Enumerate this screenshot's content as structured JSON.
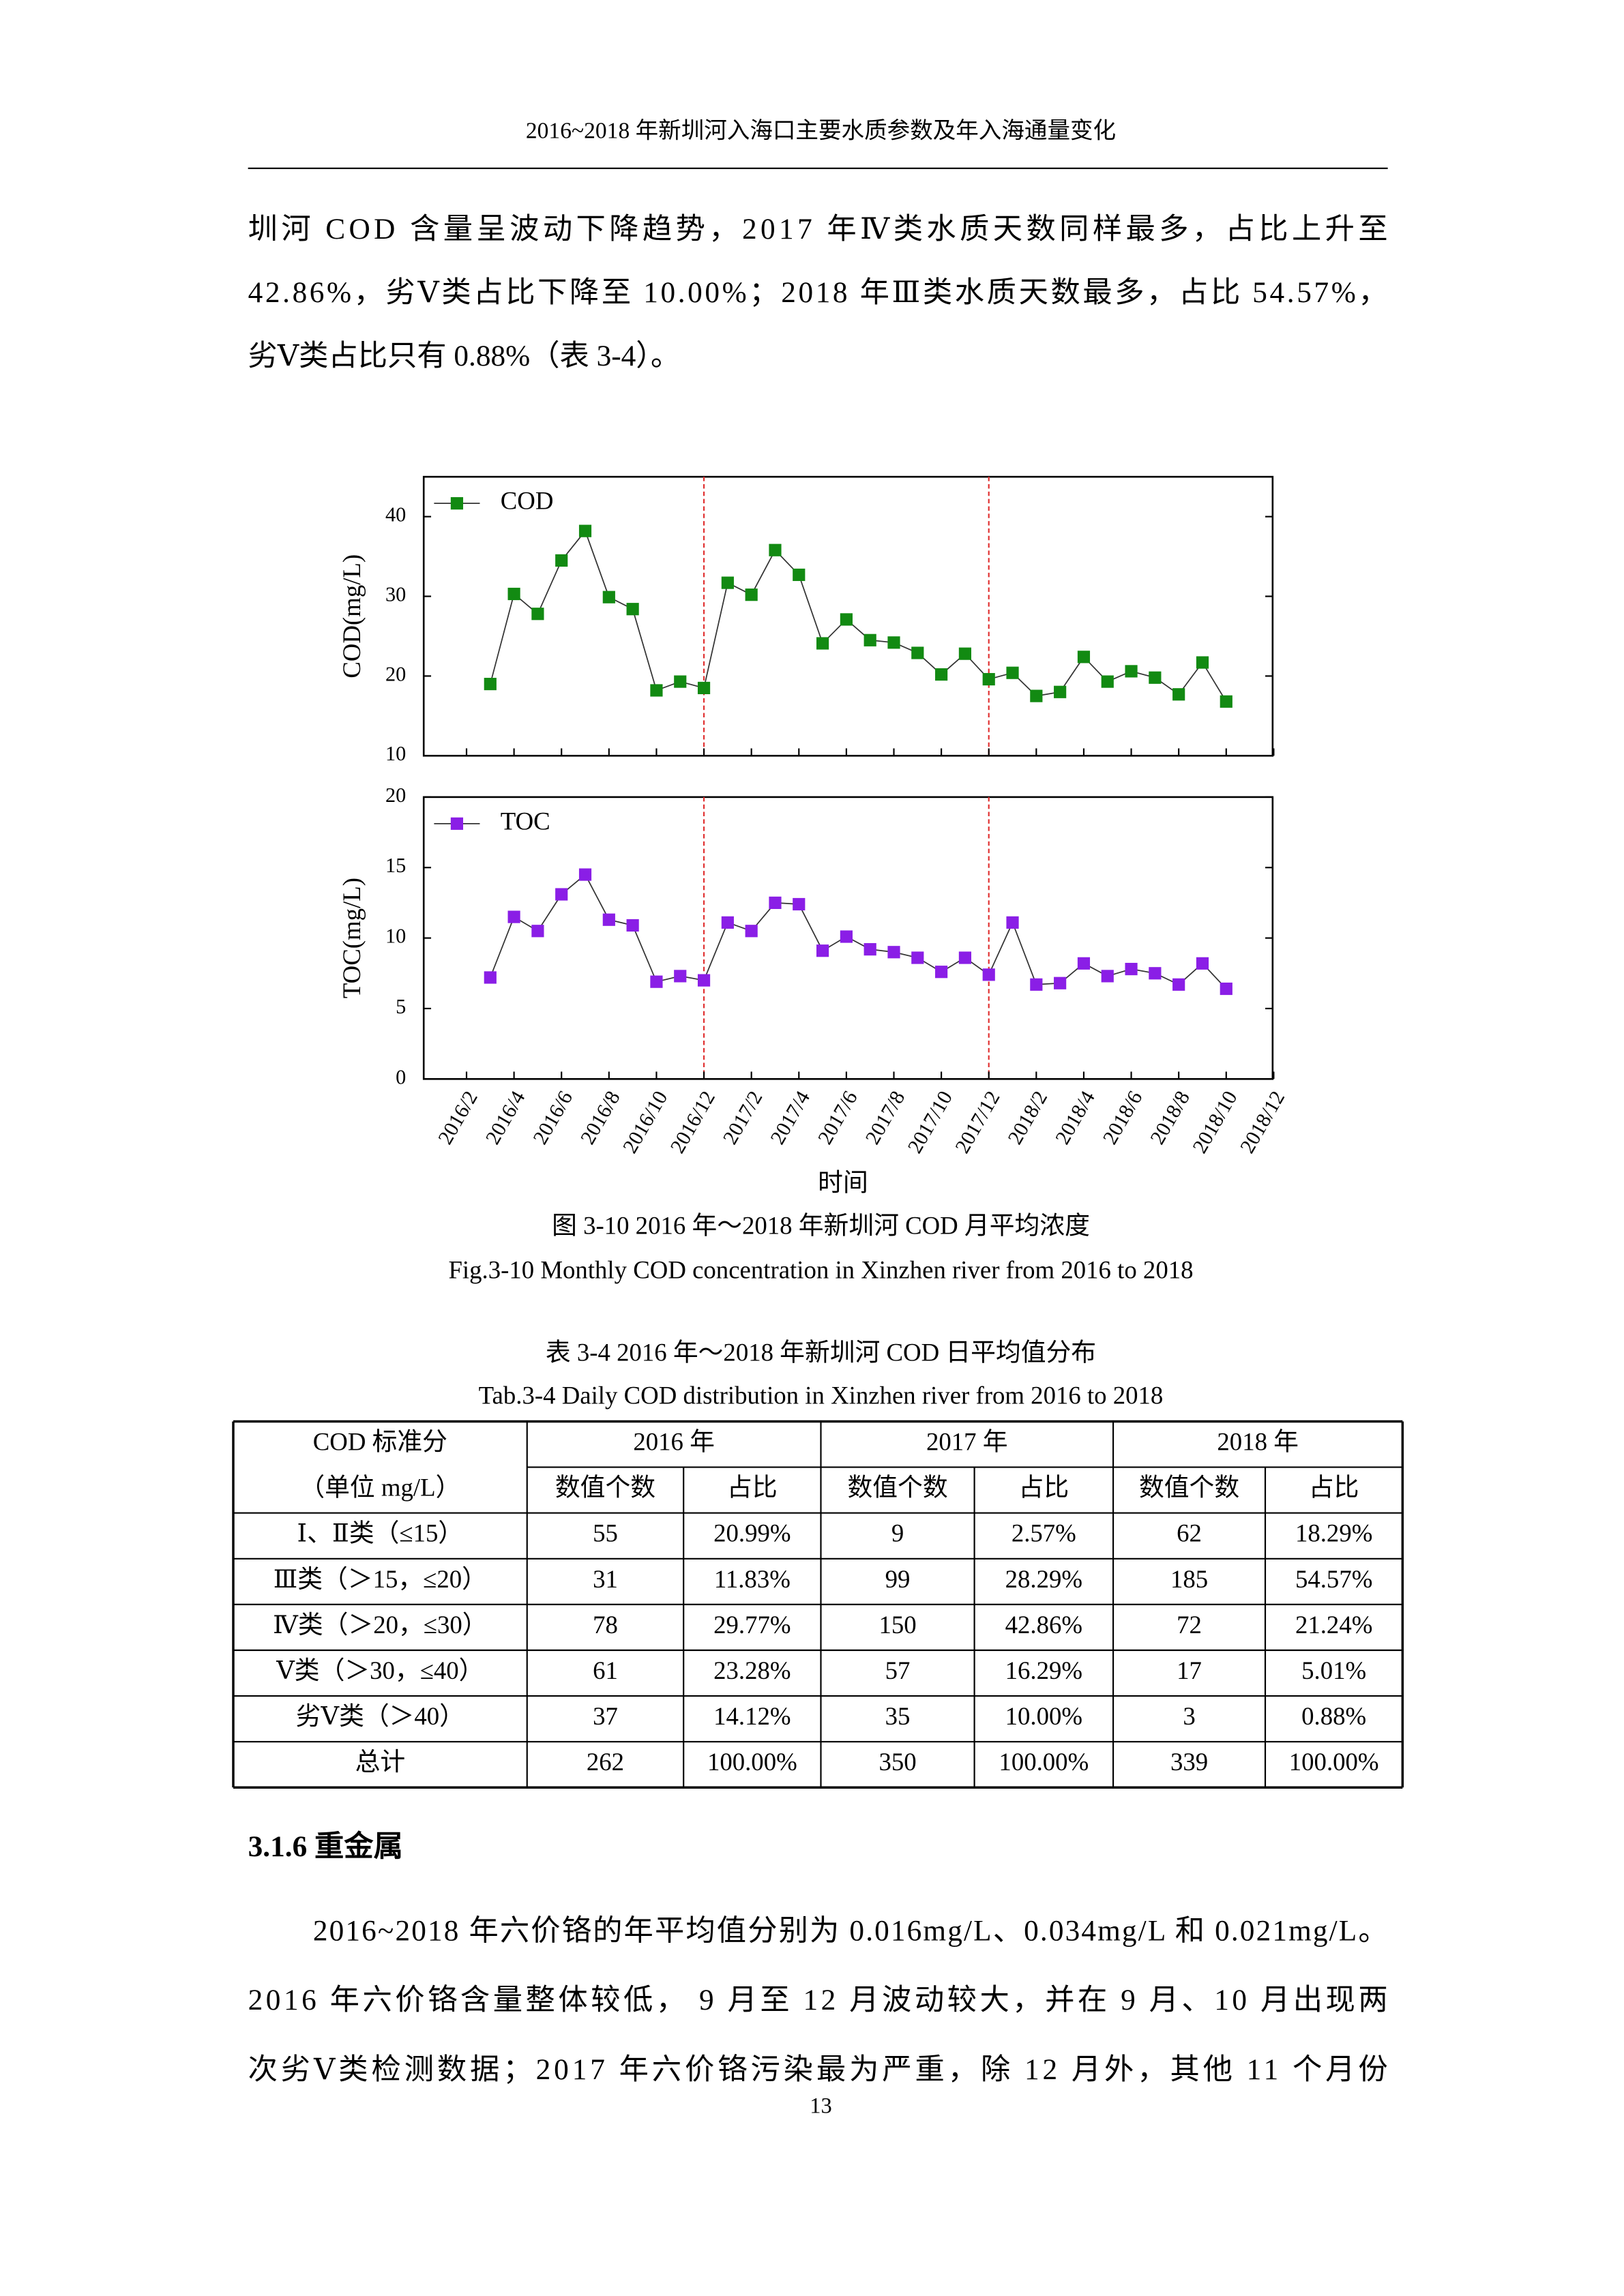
{
  "header": "2016~2018 年新圳河入海口主要水质参数及年入海通量变化",
  "paragraph_1": [
    "圳河 COD 含量呈波动下降趋势，2017 年Ⅳ类水质天数同样最多，占比上升至",
    "42.86%，劣Ⅴ类占比下降至 10.00%；2018 年Ⅲ类水质天数最多，占比 54.57%，",
    "劣Ⅴ类占比只有 0.88%（表 3-4）。"
  ],
  "chart_data": {
    "type": "line",
    "x_label": "时间",
    "categories": [
      "2016/2",
      null,
      "2016/4",
      null,
      "2016/6",
      null,
      "2016/8",
      null,
      "2016/10",
      null,
      "2016/12",
      null,
      "2017/2",
      null,
      "2017/4",
      null,
      "2017/6",
      null,
      "2017/8",
      null,
      "2017/10",
      null,
      "2017/12",
      null,
      "2018/2",
      null,
      "2018/4",
      null,
      "2018/6",
      null,
      "2018/8",
      null,
      "2018/10",
      null,
      "2018/12"
    ],
    "reference_lines": [
      "2016/12",
      "2017/12"
    ],
    "reference_line_color": "#e03030",
    "legend": "upper left",
    "panels": [
      {
        "y_label": "COD(mg/L)",
        "ylim": [
          10,
          45
        ],
        "yticks": [
          10,
          20,
          30,
          40
        ],
        "series": [
          {
            "name": "COD",
            "color": "#128a12",
            "values": [
              null,
              19.0,
              30.3,
              27.8,
              34.5,
              38.2,
              29.9,
              28.4,
              18.2,
              19.3,
              18.5,
              31.7,
              30.2,
              35.8,
              32.7,
              24.1,
              27.1,
              24.5,
              24.2,
              22.9,
              20.2,
              22.8,
              19.6,
              20.4,
              17.5,
              18.0,
              22.4,
              19.3,
              20.6,
              19.8,
              17.7,
              21.7,
              16.8,
              null,
              null
            ]
          }
        ]
      },
      {
        "y_label": "TOC(mg/L)",
        "ylim": [
          0,
          20
        ],
        "yticks": [
          0,
          5,
          10,
          15,
          20
        ],
        "series": [
          {
            "name": "TOC",
            "color": "#8a1ee6",
            "values": [
              null,
              7.2,
              11.5,
              10.5,
              13.1,
              14.5,
              11.3,
              10.9,
              6.9,
              7.3,
              7.0,
              11.1,
              10.5,
              12.5,
              12.4,
              9.1,
              10.1,
              9.2,
              9.0,
              8.6,
              7.6,
              8.6,
              7.4,
              11.1,
              6.7,
              6.8,
              8.2,
              7.3,
              7.8,
              7.5,
              6.7,
              8.2,
              6.4,
              null,
              null
            ]
          }
        ]
      }
    ]
  },
  "figure_caption": {
    "zh": "图 3-10 2016 年～2018 年新圳河 COD 月平均浓度",
    "en": "Fig.3-10 Monthly COD concentration in Xinzhen river from 2016 to 2018"
  },
  "table_caption": {
    "zh": "表 3-4 2016 年～2018 年新圳河 COD 日平均值分布",
    "en": "Tab.3-4 Daily COD distribution in Xinzhen river from 2016 to 2018"
  },
  "table": {
    "header_rows": [
      [
        "COD 标准分",
        "2016 年",
        "2017 年",
        "2018 年"
      ],
      [
        "（单位 mg/L）",
        "数值个数",
        "占比",
        "数值个数",
        "占比",
        "数值个数",
        "占比"
      ]
    ],
    "rows": [
      [
        "Ⅰ、Ⅱ类（≤15）",
        55,
        "20.99%",
        9,
        "2.57%",
        62,
        "18.29%"
      ],
      [
        "Ⅲ类（＞15，≤20）",
        31,
        "11.83%",
        99,
        "28.29%",
        185,
        "54.57%"
      ],
      [
        "Ⅳ类（＞20，≤30）",
        78,
        "29.77%",
        150,
        "42.86%",
        72,
        "21.24%"
      ],
      [
        "Ⅴ类（＞30，≤40）",
        61,
        "23.28%",
        57,
        "16.29%",
        17,
        "5.01%"
      ],
      [
        "劣Ⅴ类（＞40）",
        37,
        "14.12%",
        35,
        "10.00%",
        3,
        "0.88%"
      ],
      [
        "总计",
        262,
        "100.00%",
        350,
        "100.00%",
        339,
        "100.00%"
      ]
    ]
  },
  "section_heading": "3.1.6  重金属",
  "paragraph_2": [
    "2016~2018 年六价铬的年平均值分别为 0.016mg/L、0.034mg/L 和 0.021mg/L。",
    "2016 年六价铬含量整体较低， 9 月至 12 月波动较大，并在 9 月、10 月出现两",
    "次劣Ⅴ类检测数据；2017 年六价铬污染最为严重，除 12 月外，其他 11 个月份"
  ],
  "page_number": "13"
}
